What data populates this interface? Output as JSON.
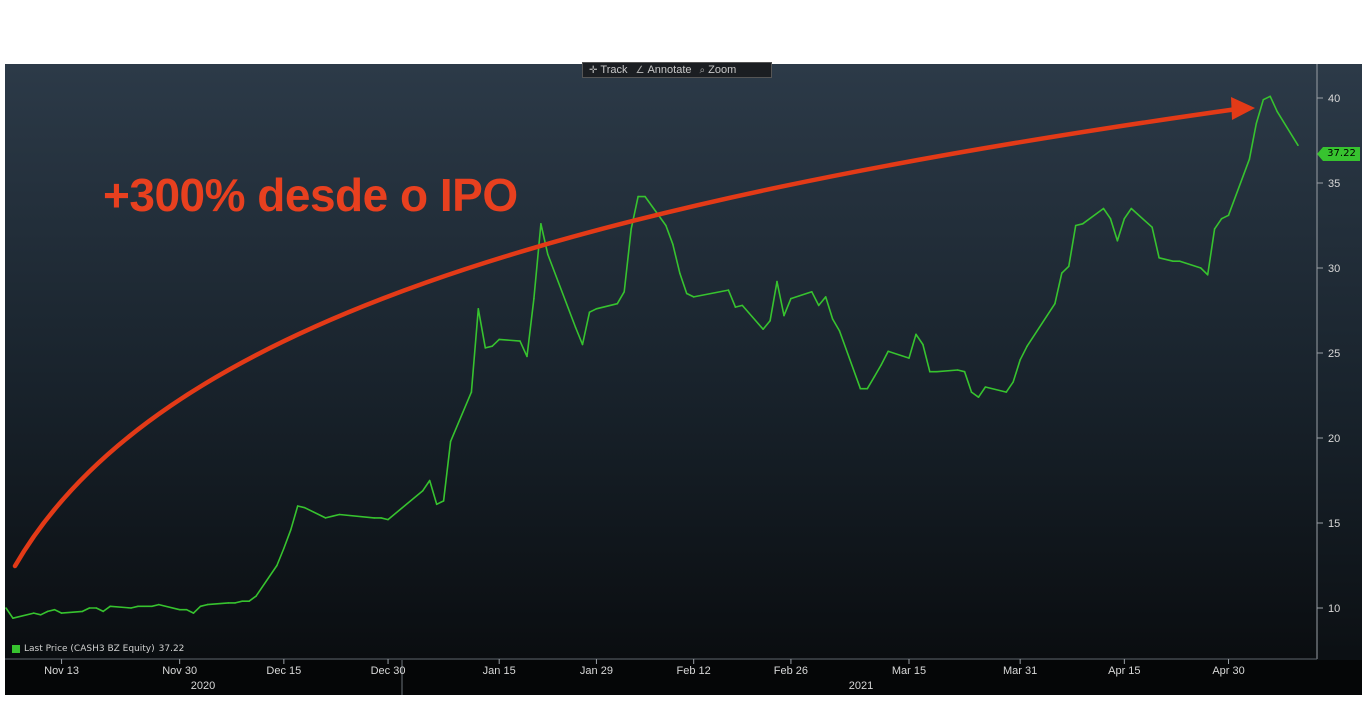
{
  "toolbar": {
    "track_label": "Track",
    "annotate_label": "Annotate",
    "zoom_label": "Zoom"
  },
  "legend": {
    "label": "Last Price (CASH3 BZ Equity)",
    "value": "37.22",
    "color": "#37c32f"
  },
  "last_price_badge": "37.22",
  "annotation": {
    "text": "+300% desde o IPO",
    "color": "#e8401f"
  },
  "chart_data": {
    "type": "line",
    "title": "",
    "xlabel": "",
    "ylabel": "",
    "ylim": [
      7,
      42
    ],
    "yticks": [
      10,
      15,
      20,
      25,
      30,
      35,
      40
    ],
    "x_tick_labels": [
      "Nov 13",
      "Nov 30",
      "Dec 15",
      "Dec 30",
      "Jan 15",
      "Jan 29",
      "Feb 12",
      "Feb 26",
      "Mar 15",
      "Mar 31",
      "Apr 15",
      "Apr 30"
    ],
    "x_year_labels": [
      "2020",
      "2021"
    ],
    "grid": false,
    "legend_position": "bottom-left",
    "series": [
      {
        "name": "Last Price (CASH3 BZ Equity)",
        "color": "#37c32f",
        "x": [
          "2020-11-05",
          "2020-11-06",
          "2020-11-09",
          "2020-11-10",
          "2020-11-11",
          "2020-11-12",
          "2020-11-13",
          "2020-11-16",
          "2020-11-17",
          "2020-11-18",
          "2020-11-19",
          "2020-11-20",
          "2020-11-23",
          "2020-11-24",
          "2020-11-25",
          "2020-11-26",
          "2020-11-27",
          "2020-11-30",
          "2020-12-01",
          "2020-12-02",
          "2020-12-03",
          "2020-12-04",
          "2020-12-07",
          "2020-12-08",
          "2020-12-09",
          "2020-12-10",
          "2020-12-11",
          "2020-12-14",
          "2020-12-15",
          "2020-12-16",
          "2020-12-17",
          "2020-12-18",
          "2020-12-21",
          "2020-12-22",
          "2020-12-23",
          "2020-12-28",
          "2020-12-29",
          "2020-12-30",
          "2021-01-04",
          "2021-01-05",
          "2021-01-06",
          "2021-01-07",
          "2021-01-08",
          "2021-01-11",
          "2021-01-12",
          "2021-01-13",
          "2021-01-14",
          "2021-01-15",
          "2021-01-18",
          "2021-01-19",
          "2021-01-20",
          "2021-01-21",
          "2021-01-22",
          "2021-01-26",
          "2021-01-27",
          "2021-01-28",
          "2021-01-29",
          "2021-02-01",
          "2021-02-02",
          "2021-02-03",
          "2021-02-04",
          "2021-02-05",
          "2021-02-08",
          "2021-02-09",
          "2021-02-10",
          "2021-02-11",
          "2021-02-12",
          "2021-02-17",
          "2021-02-18",
          "2021-02-19",
          "2021-02-22",
          "2021-02-23",
          "2021-02-24",
          "2021-02-25",
          "2021-02-26",
          "2021-03-01",
          "2021-03-02",
          "2021-03-03",
          "2021-03-04",
          "2021-03-05",
          "2021-03-08",
          "2021-03-09",
          "2021-03-10",
          "2021-03-11",
          "2021-03-12",
          "2021-03-15",
          "2021-03-16",
          "2021-03-17",
          "2021-03-18",
          "2021-03-19",
          "2021-03-22",
          "2021-03-23",
          "2021-03-24",
          "2021-03-25",
          "2021-03-26",
          "2021-03-29",
          "2021-03-30",
          "2021-03-31",
          "2021-04-01",
          "2021-04-05",
          "2021-04-06",
          "2021-04-07",
          "2021-04-08",
          "2021-04-09",
          "2021-04-12",
          "2021-04-13",
          "2021-04-14",
          "2021-04-15",
          "2021-04-16",
          "2021-04-19",
          "2021-04-20",
          "2021-04-22",
          "2021-04-23",
          "2021-04-26",
          "2021-04-27",
          "2021-04-28",
          "2021-04-29",
          "2021-04-30",
          "2021-05-03",
          "2021-05-04",
          "2021-05-05",
          "2021-05-06",
          "2021-05-07",
          "2021-05-10"
        ],
        "values": [
          10.0,
          9.4,
          9.7,
          9.6,
          9.8,
          9.9,
          9.7,
          9.8,
          10.0,
          10.0,
          9.8,
          10.1,
          10.0,
          10.1,
          10.1,
          10.1,
          10.2,
          9.9,
          9.9,
          9.7,
          10.1,
          10.2,
          10.3,
          10.3,
          10.4,
          10.4,
          10.7,
          12.5,
          13.5,
          14.6,
          16.0,
          15.9,
          15.3,
          15.4,
          15.5,
          15.3,
          15.3,
          15.2,
          16.9,
          17.5,
          16.1,
          16.3,
          19.8,
          22.7,
          27.6,
          25.3,
          25.4,
          25.8,
          25.7,
          24.8,
          28.2,
          32.6,
          30.8,
          26.5,
          25.5,
          27.4,
          27.6,
          27.9,
          28.6,
          32.3,
          34.2,
          34.2,
          32.5,
          31.4,
          29.7,
          28.5,
          28.3,
          28.7,
          27.7,
          27.8,
          26.4,
          26.9,
          29.2,
          27.2,
          28.2,
          28.6,
          27.8,
          28.3,
          27.0,
          26.3,
          22.9,
          22.9,
          23.6,
          24.3,
          25.1,
          24.7,
          26.1,
          25.5,
          23.9,
          23.9,
          24.0,
          23.9,
          22.7,
          22.4,
          23.0,
          22.7,
          23.3,
          24.6,
          25.4,
          27.9,
          29.7,
          30.1,
          32.5,
          32.6,
          33.5,
          32.9,
          31.6,
          32.9,
          33.5,
          32.4,
          30.6,
          30.4,
          30.4,
          30.0,
          29.6,
          32.3,
          32.9,
          33.1,
          36.4,
          38.5,
          39.9,
          40.1,
          39.2,
          37.22
        ]
      }
    ]
  }
}
